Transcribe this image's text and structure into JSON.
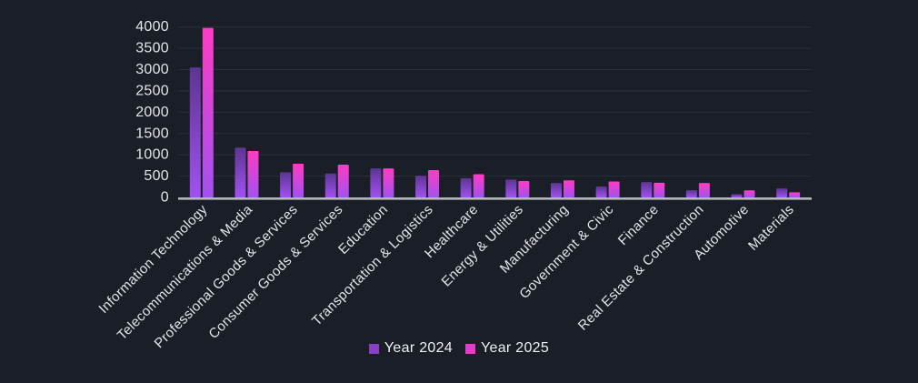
{
  "chart_data": {
    "type": "bar",
    "categories": [
      "Information Technology",
      "Telecommunications & Media",
      "Professional Goods & Services",
      "Consumer Goods &  Services",
      "Education",
      "Transportation & Logistics",
      "Healthcare",
      "Energy & Utilities",
      "Manufacturing",
      "Government & Civic",
      "Finance",
      "Real Estate & Construction",
      "Automotive",
      "Materials"
    ],
    "series": [
      {
        "name": "Year 2024",
        "values": [
          3050,
          1170,
          590,
          560,
          680,
          510,
          450,
          420,
          340,
          255,
          360,
          170,
          75,
          210
        ],
        "legend_color": "#8a3fc6",
        "gradient_top": "#5d3593",
        "gradient_bottom": "#a251f0"
      },
      {
        "name": "Year 2025",
        "values": [
          3980,
          1090,
          790,
          770,
          680,
          640,
          545,
          385,
          400,
          375,
          345,
          340,
          165,
          120
        ],
        "legend_color": "#e23ccb",
        "gradient_top": "#ff3bc3",
        "gradient_bottom": "#a251f0"
      }
    ],
    "ylim": [
      0,
      4000
    ],
    "ytick_step": 500,
    "y_tick_labels": [
      "0",
      "500",
      "1000",
      "1500",
      "2000",
      "2500",
      "3000",
      "3500",
      "4000"
    ],
    "grid": true,
    "legend_position": "bottom-center"
  },
  "colors": {
    "background": "#1a1e27",
    "gridline": "#2b303b",
    "axis_line": "#b5b5bc",
    "tick_label": "#e4e4e9",
    "category_label": "#e4e4e9",
    "legend_text": "#f0f0f4"
  }
}
